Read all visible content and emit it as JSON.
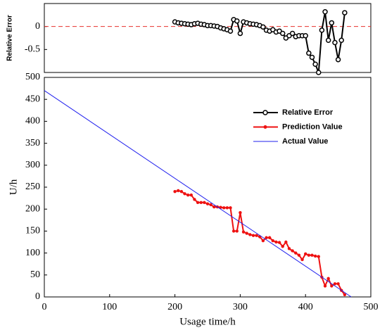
{
  "chart_data": [
    {
      "type": "line",
      "ylabel": "Relative Error",
      "xlim": [
        0,
        500
      ],
      "ylim": [
        -1,
        0.5
      ],
      "yticks": [
        -0.5,
        0
      ],
      "reference_line": {
        "value": 0,
        "color": "#e8322c"
      },
      "series": [
        {
          "name": "Relative Error",
          "color": "#000000",
          "marker": "open-circle",
          "x": [
            200,
            205,
            210,
            215,
            220,
            225,
            230,
            235,
            240,
            245,
            250,
            255,
            260,
            265,
            270,
            275,
            280,
            285,
            290,
            295,
            300,
            305,
            310,
            315,
            320,
            325,
            330,
            335,
            340,
            345,
            350,
            355,
            360,
            365,
            370,
            375,
            380,
            385,
            390,
            395,
            400,
            405,
            410,
            415,
            420,
            425,
            430,
            435,
            440,
            445,
            450,
            455,
            460
          ],
          "values": [
            0.1,
            0.08,
            0.07,
            0.06,
            0.05,
            0.04,
            0.06,
            0.07,
            0.05,
            0.04,
            0.02,
            0.02,
            0.01,
            0.0,
            -0.03,
            -0.05,
            -0.07,
            -0.1,
            0.15,
            0.12,
            -0.15,
            0.1,
            0.08,
            0.06,
            0.05,
            0.04,
            0.02,
            -0.01,
            -0.08,
            -0.1,
            -0.07,
            -0.12,
            -0.1,
            -0.15,
            -0.25,
            -0.2,
            -0.15,
            -0.22,
            -0.2,
            -0.2,
            -0.2,
            -0.58,
            -0.67,
            -0.82,
            -1.0,
            -0.08,
            0.32,
            -0.3,
            0.08,
            -0.35,
            -0.72,
            -0.3,
            0.3
          ]
        }
      ]
    },
    {
      "type": "line",
      "xlabel": "Usage time/h",
      "ylabel": "U/h",
      "xlim": [
        0,
        500
      ],
      "ylim": [
        0,
        500
      ],
      "xticks": [
        0,
        100,
        200,
        300,
        400,
        500
      ],
      "yticks": [
        0,
        50,
        100,
        150,
        200,
        250,
        300,
        350,
        400,
        450,
        500
      ],
      "series": [
        {
          "name": "Prediction Value",
          "color": "#ee1111",
          "marker": "dot",
          "x": [
            200,
            205,
            210,
            215,
            220,
            225,
            230,
            235,
            240,
            245,
            250,
            255,
            260,
            265,
            270,
            275,
            280,
            285,
            290,
            295,
            300,
            305,
            310,
            315,
            320,
            325,
            330,
            335,
            340,
            345,
            350,
            355,
            360,
            365,
            370,
            375,
            380,
            385,
            390,
            395,
            400,
            405,
            410,
            415,
            420,
            425,
            430,
            435,
            440,
            445,
            450,
            455,
            460
          ],
          "values": [
            240,
            242,
            240,
            235,
            232,
            232,
            222,
            215,
            215,
            215,
            212,
            210,
            205,
            205,
            204,
            203,
            203,
            203,
            150,
            150,
            192,
            148,
            145,
            142,
            140,
            140,
            137,
            128,
            135,
            135,
            128,
            125,
            124,
            115,
            125,
            110,
            105,
            100,
            95,
            85,
            98,
            95,
            95,
            93,
            92,
            45,
            25,
            42,
            25,
            30,
            30,
            15,
            5
          ]
        },
        {
          "name": "Actual Value",
          "color": "#2222ee",
          "marker": "none",
          "x": [
            0,
            470
          ],
          "values": [
            470,
            0
          ]
        }
      ]
    }
  ]
}
